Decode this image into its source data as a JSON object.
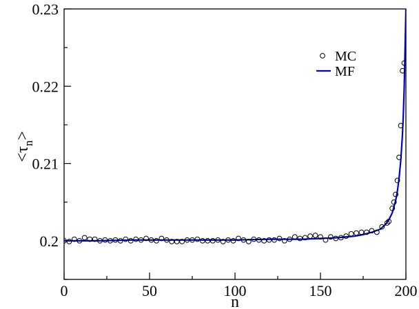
{
  "chart_data": {
    "type": "scatter",
    "title": "",
    "xlabel": "n",
    "ylabel": "<τn>",
    "ylabel_main": "τ",
    "ylabel_sub": "n",
    "xlim": [
      0,
      200
    ],
    "ylim": [
      0.195,
      0.23
    ],
    "xticks": [
      0,
      50,
      100,
      150,
      200
    ],
    "yticks": [
      0.2,
      0.21,
      0.22,
      0.23
    ],
    "xtick_labels": [
      "0",
      "50",
      "100",
      "150",
      "200"
    ],
    "ytick_labels": [
      "0.2",
      "0.21",
      "0.22",
      "0.23"
    ],
    "grid": false,
    "legend": {
      "position": "top-right",
      "entries": [
        "MC",
        "MF"
      ]
    },
    "series": [
      {
        "name": "MC",
        "kind": "markers",
        "marker": "open-circle",
        "color": "#000000",
        "x": [
          0,
          3,
          6,
          9,
          12,
          15,
          18,
          21,
          24,
          27,
          30,
          33,
          36,
          39,
          42,
          45,
          48,
          51,
          54,
          57,
          60,
          63,
          66,
          69,
          72,
          75,
          78,
          81,
          84,
          87,
          90,
          93,
          96,
          99,
          102,
          105,
          108,
          111,
          114,
          117,
          120,
          123,
          126,
          129,
          132,
          135,
          138,
          141,
          144,
          147,
          150,
          153,
          156,
          159,
          162,
          165,
          168,
          171,
          174,
          177,
          180,
          183,
          186,
          189,
          190,
          192,
          193,
          194,
          195,
          196,
          197,
          198,
          199
        ],
        "y": [
          0.2,
          0.1999,
          0.2002,
          0.2,
          0.2004,
          0.2002,
          0.2002,
          0.2,
          0.2001,
          0.2,
          0.2001,
          0.2,
          0.2002,
          0.2,
          0.2002,
          0.2001,
          0.2003,
          0.2001,
          0.2,
          0.2003,
          0.2001,
          0.1999,
          0.1999,
          0.1999,
          0.2001,
          0.2001,
          0.2002,
          0.2,
          0.2,
          0.2,
          0.2001,
          0.1999,
          0.2001,
          0.2,
          0.2003,
          0.2001,
          0.1999,
          0.2002,
          0.2001,
          0.2,
          0.2001,
          0.2001,
          0.2003,
          0.2,
          0.2002,
          0.2005,
          0.2003,
          0.2004,
          0.2006,
          0.2007,
          0.2005,
          0.2001,
          0.2005,
          0.2003,
          0.2004,
          0.2006,
          0.2009,
          0.201,
          0.2011,
          0.2011,
          0.2013,
          0.2011,
          0.2018,
          0.2023,
          0.2025,
          0.2042,
          0.205,
          0.206,
          0.2078,
          0.2108,
          0.2149,
          0.222,
          0.223
        ]
      },
      {
        "name": "MF",
        "kind": "line",
        "color": "#0000cc",
        "x": [
          0,
          20,
          40,
          60,
          80,
          100,
          120,
          140,
          150,
          160,
          170,
          175,
          180,
          185,
          188,
          190,
          192,
          194,
          195,
          196,
          197,
          198,
          198.5,
          199,
          199.5,
          200
        ],
        "y": [
          0.2,
          0.2,
          0.2001,
          0.2001,
          0.2001,
          0.2001,
          0.2002,
          0.2002,
          0.2003,
          0.2004,
          0.2006,
          0.2008,
          0.2011,
          0.2015,
          0.2021,
          0.2027,
          0.2036,
          0.2052,
          0.2064,
          0.2081,
          0.2104,
          0.2138,
          0.2164,
          0.2198,
          0.2248,
          0.23
        ]
      }
    ]
  }
}
